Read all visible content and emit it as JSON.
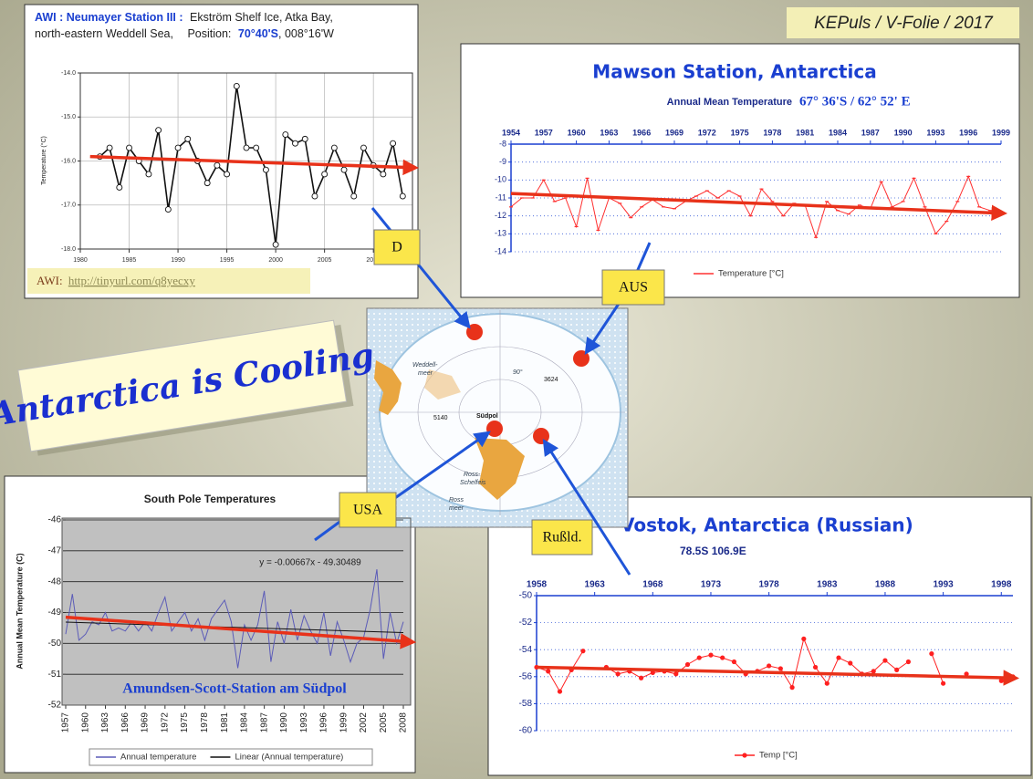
{
  "header": "KEPuls / V-Folie / 2017",
  "headline": "Antarctica is Cooling",
  "source": {
    "prefix": "AWI:",
    "link": "http://tinyurl.com/q8yecxy"
  },
  "labels": [
    "D",
    "AUS",
    "USA",
    "Rußld."
  ],
  "map": {
    "labels": [
      "Weddell-",
      "meer",
      "90°",
      "Südpol",
      "3624",
      "5140",
      "Ross-",
      "Schelfeis",
      "Ross",
      "meer"
    ]
  },
  "chart_data": [
    {
      "type": "line",
      "title_parts": [
        "AWI : Neumayer Station III :",
        "Ekström Shelf Ice, Atka Bay,",
        "north-eastern Weddell Sea,",
        "Position:",
        "70°40'S",
        ", 008°16'W"
      ],
      "ylabel": "Temperature (°C)",
      "x": [
        1982,
        1983,
        1984,
        1985,
        1986,
        1987,
        1988,
        1989,
        1990,
        1991,
        1992,
        1993,
        1994,
        1995,
        1996,
        1997,
        1998,
        1999,
        2000,
        2001,
        2002,
        2003,
        2004,
        2005,
        2006,
        2007,
        2008,
        2009,
        2010,
        2011,
        2012,
        2013
      ],
      "values": [
        -15.9,
        -15.7,
        -16.6,
        -15.7,
        -16.0,
        -16.3,
        -15.3,
        -17.1,
        -15.7,
        -15.5,
        -16.0,
        -16.5,
        -16.1,
        -16.3,
        -14.3,
        -15.7,
        -15.7,
        -16.2,
        -17.9,
        -15.4,
        -15.6,
        -15.5,
        -16.8,
        -16.3,
        -15.7,
        -16.2,
        -16.8,
        -15.7,
        -16.1,
        -16.3,
        -15.6,
        -16.8
      ],
      "color": "#111111",
      "marker": "open-circle",
      "xlim": [
        1980,
        2014
      ],
      "xticks": [
        1980,
        1985,
        1990,
        1995,
        2000,
        2005,
        2010
      ],
      "ylim": [
        -18,
        -14
      ],
      "yticks": [
        {
          "value": -18,
          "label": "-18.0"
        },
        {
          "value": -17,
          "label": "-17.0"
        },
        {
          "value": -16,
          "label": "-16.0"
        },
        {
          "value": -15,
          "label": "-15.0"
        },
        {
          "value": -14,
          "label": "-14.0"
        }
      ],
      "grid": true,
      "trend": {
        "x": [
          1981,
          2014
        ],
        "values": [
          -15.9,
          -16.15
        ],
        "color": "#e8321a"
      }
    },
    {
      "type": "line",
      "title": "Mawson Station, Antarctica",
      "subtitle": "Annual Mean Temperature",
      "position": "67° 36'S / 62° 52' E",
      "x": [
        1954,
        1955,
        1956,
        1957,
        1958,
        1959,
        1960,
        1961,
        1962,
        1963,
        1964,
        1965,
        1966,
        1967,
        1968,
        1969,
        1970,
        1971,
        1972,
        1973,
        1974,
        1975,
        1976,
        1977,
        1978,
        1979,
        1980,
        1981,
        1982,
        1983,
        1984,
        1985,
        1986,
        1987,
        1988,
        1989,
        1990,
        1991,
        1992,
        1993,
        1994,
        1995,
        1996,
        1997,
        1998,
        1999
      ],
      "series": [
        {
          "name": "Temperature [°C]",
          "color": "#ff3030",
          "values": [
            -11.5,
            -11.0,
            -11.0,
            -10.0,
            -11.2,
            -11.0,
            -12.6,
            -9.9,
            -12.8,
            -11.0,
            -11.3,
            -12.1,
            -11.5,
            -11.1,
            -11.5,
            -11.6,
            -11.2,
            -10.9,
            -10.6,
            -11.0,
            -10.6,
            -10.9,
            -12.0,
            -10.5,
            -11.2,
            -12.0,
            -11.3,
            -11.4,
            -13.2,
            -11.2,
            -11.7,
            -11.9,
            -11.4,
            -11.6,
            -10.1,
            -11.5,
            -11.2,
            -9.9,
            -11.5,
            -13.0,
            -12.3,
            -11.2,
            -9.8,
            -11.5,
            -11.7,
            -11.8
          ]
        }
      ],
      "marker": "dash",
      "xlim": [
        1954,
        1999
      ],
      "xticks": [
        1954,
        1957,
        1960,
        1963,
        1966,
        1969,
        1972,
        1975,
        1978,
        1981,
        1984,
        1987,
        1990,
        1993,
        1996,
        1999
      ],
      "ylim": [
        -14,
        -8
      ],
      "yticks": [
        -8,
        -9,
        -10,
        -11,
        -12,
        -13,
        -14
      ],
      "grid": true,
      "trend": {
        "x": [
          1954,
          1999
        ],
        "values": [
          -10.75,
          -11.85
        ],
        "color": "#e8321a"
      }
    },
    {
      "type": "line",
      "title": "South Pole Temperatures",
      "ylabel": "Annual Mean Temperature (C)",
      "annotation": "y = -0.00667x - 49.30489",
      "overlay_text": "Amundsen-Scott-Station am Südpol",
      "x": [
        1957,
        1958,
        1959,
        1960,
        1961,
        1962,
        1963,
        1964,
        1965,
        1966,
        1967,
        1968,
        1969,
        1970,
        1971,
        1972,
        1973,
        1974,
        1975,
        1976,
        1977,
        1978,
        1979,
        1980,
        1981,
        1982,
        1983,
        1984,
        1985,
        1986,
        1987,
        1988,
        1989,
        1990,
        1991,
        1992,
        1993,
        1994,
        1995,
        1996,
        1997,
        1998,
        1999,
        2000,
        2001,
        2002,
        2003,
        2004,
        2005,
        2006,
        2007,
        2008
      ],
      "series": [
        {
          "name": "Annual temperature",
          "color": "#5b5bb8",
          "values": [
            -49.7,
            -48.4,
            -49.9,
            -49.7,
            -49.3,
            -49.4,
            -49.0,
            -49.6,
            -49.5,
            -49.6,
            -49.3,
            -49.6,
            -49.3,
            -49.6,
            -49.0,
            -48.5,
            -49.6,
            -49.3,
            -49.0,
            -49.6,
            -49.2,
            -49.9,
            -49.2,
            -48.9,
            -48.6,
            -49.3,
            -50.8,
            -49.4,
            -49.9,
            -49.4,
            -48.3,
            -50.6,
            -49.3,
            -50.0,
            -48.9,
            -49.9,
            -49.1,
            -49.6,
            -50.0,
            -49.0,
            -50.4,
            -49.3,
            -49.9,
            -50.6,
            -50.0,
            -49.8,
            -48.9,
            -47.6,
            -50.5,
            -49.0,
            -50.0,
            -49.3
          ]
        },
        {
          "name": "Linear (Annual temperature)",
          "color": "#111111",
          "x": [
            1957,
            2008
          ],
          "values": [
            -49.31,
            -49.65
          ]
        }
      ],
      "marker": "none",
      "xlim": [
        1957,
        2008
      ],
      "xticks": [
        1957,
        1960,
        1963,
        1966,
        1969,
        1972,
        1975,
        1978,
        1981,
        1984,
        1987,
        1990,
        1993,
        1996,
        1999,
        2002,
        2005,
        2008
      ],
      "ylim": [
        -52,
        -46
      ],
      "yticks": [
        -46,
        -47,
        -48,
        -49,
        -50,
        -51,
        -52
      ],
      "grid": true,
      "trend": {
        "x": [
          1957,
          2009
        ],
        "values": [
          -49.15,
          -49.95
        ],
        "color": "#e8321a"
      }
    },
    {
      "type": "line",
      "title": "Vostok, Antarctica (Russian)",
      "subtitle": "78.5S 106.9E",
      "x": [
        1958,
        1959,
        1960,
        1961,
        1962,
        1963,
        1964,
        1965,
        1966,
        1967,
        1968,
        1969,
        1970,
        1971,
        1972,
        1973,
        1974,
        1975,
        1976,
        1977,
        1978,
        1979,
        1980,
        1981,
        1982,
        1983,
        1984,
        1985,
        1986,
        1987,
        1988,
        1989,
        1990,
        1991,
        1992,
        1993,
        1994,
        1995,
        1996,
        1997,
        1998,
        1999
      ],
      "series": [
        {
          "name": "Temp [°C]",
          "color": "#ff2020",
          "values": [
            -55.3,
            -55.6,
            -57.1,
            -55.5,
            -54.1,
            null,
            -55.3,
            -55.8,
            -55.6,
            -56.1,
            -55.7,
            -55.6,
            -55.8,
            -55.1,
            -54.6,
            -54.4,
            -54.6,
            -54.9,
            -55.8,
            -55.6,
            -55.2,
            -55.4,
            -56.8,
            -53.2,
            -55.3,
            -56.5,
            -54.6,
            -55.0,
            -55.8,
            -55.6,
            -54.8,
            -55.5,
            -54.9,
            null,
            -54.3,
            -56.5,
            null,
            -55.8,
            null,
            null,
            -56.3,
            -56.0
          ]
        }
      ],
      "marker": "dot",
      "xlim": [
        1958,
        1999
      ],
      "xticks": [
        1958,
        1963,
        1968,
        1973,
        1978,
        1983,
        1988,
        1993,
        1998
      ],
      "ylim": [
        -60,
        -50
      ],
      "yticks": [
        -50,
        -52,
        -54,
        -56,
        -58,
        -60
      ],
      "grid": true,
      "trend": {
        "x": [
          1958,
          1999
        ],
        "values": [
          -55.3,
          -56.1
        ],
        "color": "#e8321a"
      }
    }
  ]
}
